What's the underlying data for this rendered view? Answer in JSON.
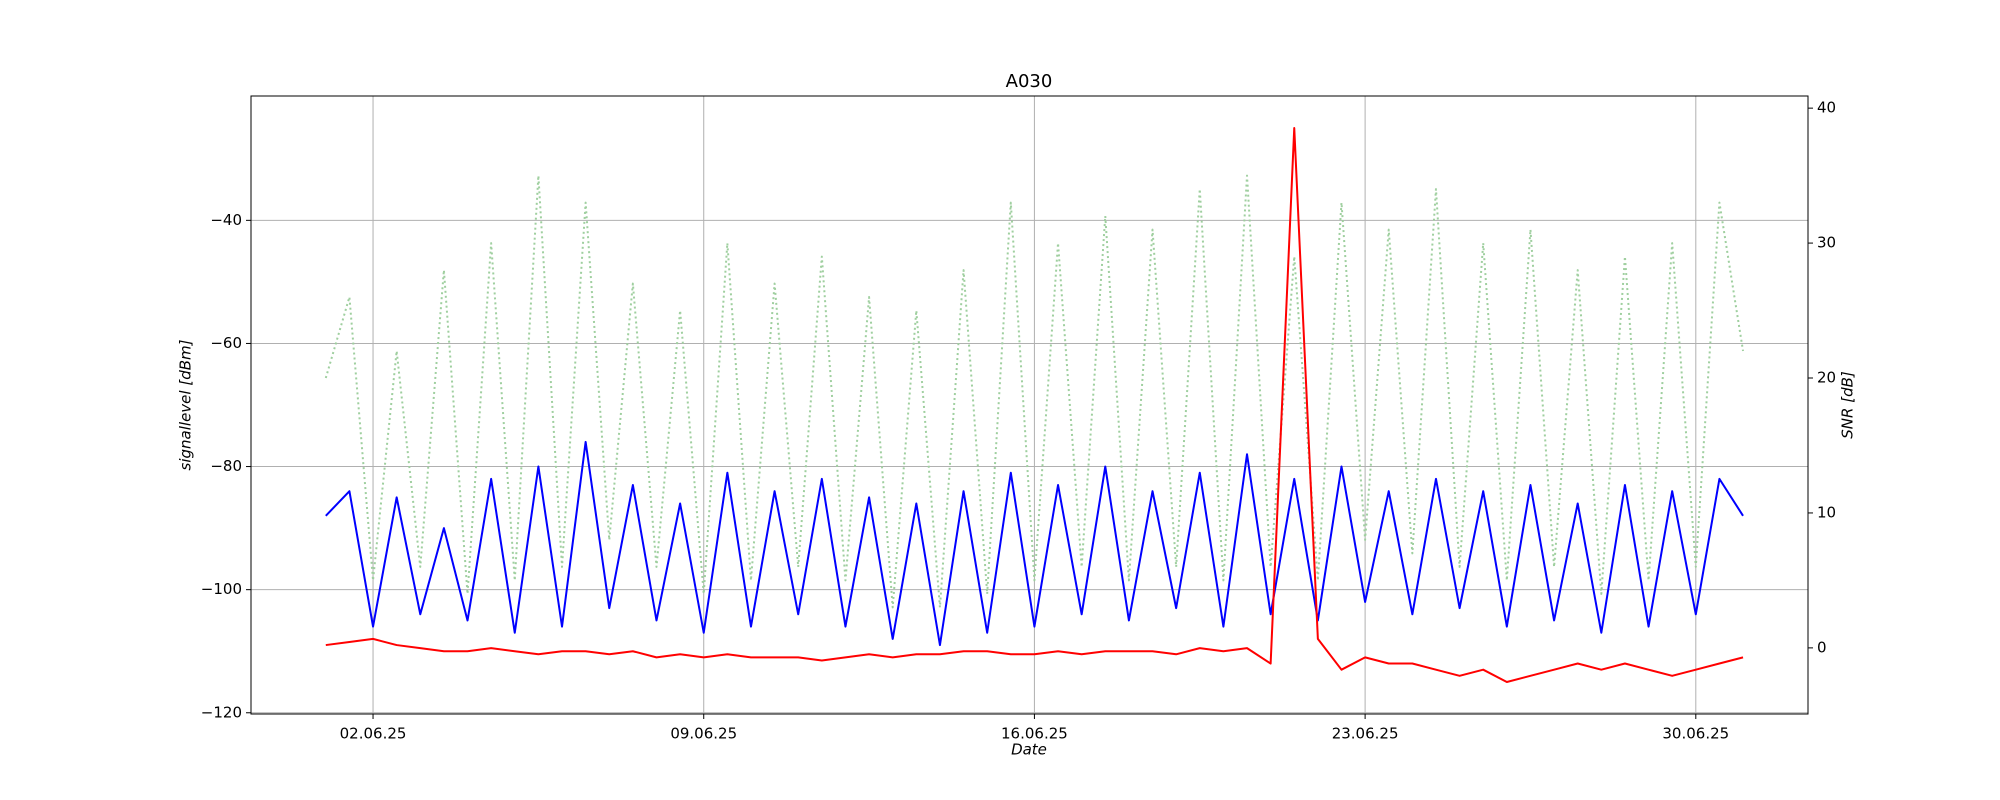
{
  "chart_data": {
    "type": "line",
    "title": "A030",
    "x_label": "Date",
    "y_label": "signallevel [dBm]",
    "y2_label": "SNR [dB]",
    "x": [
      "2025-06-01 00:00",
      "2025-06-01 12:00",
      "2025-06-02 00:00",
      "2025-06-02 12:00",
      "2025-06-03 00:00",
      "2025-06-03 12:00",
      "2025-06-04 00:00",
      "2025-06-04 12:00",
      "2025-06-05 00:00",
      "2025-06-05 12:00",
      "2025-06-06 00:00",
      "2025-06-06 12:00",
      "2025-06-07 00:00",
      "2025-06-07 12:00",
      "2025-06-08 00:00",
      "2025-06-08 12:00",
      "2025-06-09 00:00",
      "2025-06-09 12:00",
      "2025-06-10 00:00",
      "2025-06-10 12:00",
      "2025-06-11 00:00",
      "2025-06-11 12:00",
      "2025-06-12 00:00",
      "2025-06-12 12:00",
      "2025-06-13 00:00",
      "2025-06-13 12:00",
      "2025-06-14 00:00",
      "2025-06-14 12:00",
      "2025-06-15 00:00",
      "2025-06-15 12:00",
      "2025-06-16 00:00",
      "2025-06-16 12:00",
      "2025-06-17 00:00",
      "2025-06-17 12:00",
      "2025-06-18 00:00",
      "2025-06-18 12:00",
      "2025-06-19 00:00",
      "2025-06-19 12:00",
      "2025-06-20 00:00",
      "2025-06-20 12:00",
      "2025-06-21 00:00",
      "2025-06-21 12:00",
      "2025-06-22 00:00",
      "2025-06-22 12:00",
      "2025-06-23 00:00",
      "2025-06-23 12:00",
      "2025-06-24 00:00",
      "2025-06-24 12:00",
      "2025-06-25 00:00",
      "2025-06-25 12:00",
      "2025-06-26 00:00",
      "2025-06-26 12:00",
      "2025-06-27 00:00",
      "2025-06-27 12:00",
      "2025-06-28 00:00",
      "2025-06-28 12:00",
      "2025-06-29 00:00",
      "2025-06-29 12:00",
      "2025-06-30 00:00",
      "2025-06-30 12:00",
      "2025-07-01 00:00"
    ],
    "series": [
      {
        "color": "#9fcf9f",
        "linestyle": "dotted",
        "axis": "y2",
        "values": [
          20,
          26,
          5,
          22,
          6,
          28,
          4,
          30,
          5,
          35,
          6,
          33,
          8,
          27,
          6,
          25,
          4,
          30,
          5,
          27,
          6,
          29,
          5,
          26,
          3,
          25,
          3,
          28,
          4,
          33,
          5,
          30,
          6,
          32,
          5,
          31,
          6,
          34,
          5,
          35,
          6,
          29,
          5,
          33,
          8,
          31,
          7,
          34,
          6,
          30,
          5,
          31,
          6,
          28,
          4,
          29,
          5,
          30,
          6,
          33,
          22
        ]
      },
      {
        "color": "#0000ff",
        "linestyle": "solid",
        "values": [
          -88,
          -84,
          -106,
          -85,
          -104,
          -90,
          -105,
          -82,
          -107,
          -80,
          -106,
          -76,
          -103,
          -83,
          -105,
          -86,
          -107,
          -81,
          -106,
          -84,
          -104,
          -82,
          -106,
          -85,
          -108,
          -86,
          -109,
          -84,
          -107,
          -81,
          -106,
          -83,
          -104,
          -80,
          -105,
          -84,
          -103,
          -81,
          -106,
          -78,
          -104,
          -82,
          -105,
          -80,
          -102,
          -84,
          -104,
          -82,
          -103,
          -84,
          -106,
          -83,
          -105,
          -86,
          -107,
          -83,
          -106,
          -84,
          -104,
          -82,
          -88
        ]
      },
      {
        "color": "#ff0000",
        "linestyle": "solid",
        "values": [
          -109,
          -108.5,
          -108,
          -109,
          -109.5,
          -110,
          -110,
          -109.5,
          -110,
          -110.5,
          -110,
          -110,
          -110.5,
          -110,
          -111,
          -110.5,
          -111,
          -110.5,
          -111,
          -111,
          -111,
          -111.5,
          -111,
          -110.5,
          -111,
          -110.5,
          -110.5,
          -110,
          -110,
          -110.5,
          -110.5,
          -110,
          -110.5,
          -110,
          -110,
          -110,
          -110.5,
          -109.5,
          -110,
          -109.5,
          -112,
          -25,
          -108,
          -113,
          -111,
          -112,
          -112,
          -113,
          -114,
          -113,
          -115,
          -114,
          -113,
          -112,
          -113,
          -112,
          -113,
          -114,
          -113,
          -112,
          -111
        ]
      }
    ],
    "xlim": [
      "2025-05-30 10:00",
      "2025-07-02 09:00"
    ],
    "xticks": [
      {
        "value": "2025-06-02 00:00",
        "label": "02.06.25"
      },
      {
        "value": "2025-06-09 00:00",
        "label": "09.06.25"
      },
      {
        "value": "2025-06-16 00:00",
        "label": "16.06.25"
      },
      {
        "value": "2025-06-23 00:00",
        "label": "23.06.25"
      },
      {
        "value": "2025-06-30 00:00",
        "label": "30.06.25"
      }
    ],
    "ylim": [
      -120.2,
      -19.8
    ],
    "yticks": [
      {
        "value": -120,
        "label": "−120"
      },
      {
        "value": -100,
        "label": "−100"
      },
      {
        "value": -80,
        "label": "−80"
      },
      {
        "value": -60,
        "label": "−60"
      },
      {
        "value": -40,
        "label": "−40"
      }
    ],
    "y2lim": [
      -4.9,
      40.9
    ],
    "y2ticks": [
      0,
      10,
      20,
      30,
      40
    ],
    "grid": true
  }
}
